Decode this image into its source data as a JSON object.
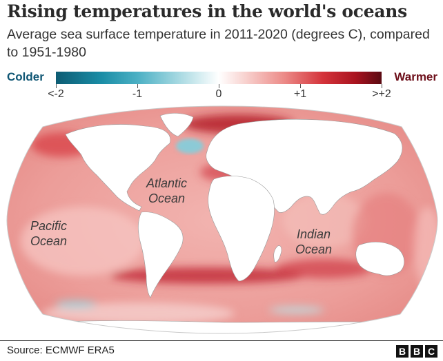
{
  "title": "Rising temperatures in the world's oceans",
  "subtitle": "Average sea surface temperature in 2011-2020 (degrees C), compared to 1951-1980",
  "legend": {
    "low_label": "Colder",
    "high_label": "Warmer",
    "ticks": [
      "<-2",
      "-1",
      "0",
      "+1",
      ">+2"
    ],
    "range": [
      -2,
      2
    ],
    "colors": [
      "#0d5c73",
      "#4bb0c4",
      "#ffffff",
      "#ec8b88",
      "#5a0a12"
    ]
  },
  "map": {
    "land_color": "#ffffff",
    "ocean_base_color": "#efa7a3",
    "labels": {
      "atlantic": [
        "Atlantic",
        "Ocean"
      ],
      "pacific": [
        "Pacific",
        "Ocean"
      ],
      "indian": [
        "Indian",
        "Ocean"
      ]
    }
  },
  "footer": {
    "source": "Source: ECMWF ERA5",
    "logo": [
      "B",
      "B",
      "C"
    ]
  }
}
